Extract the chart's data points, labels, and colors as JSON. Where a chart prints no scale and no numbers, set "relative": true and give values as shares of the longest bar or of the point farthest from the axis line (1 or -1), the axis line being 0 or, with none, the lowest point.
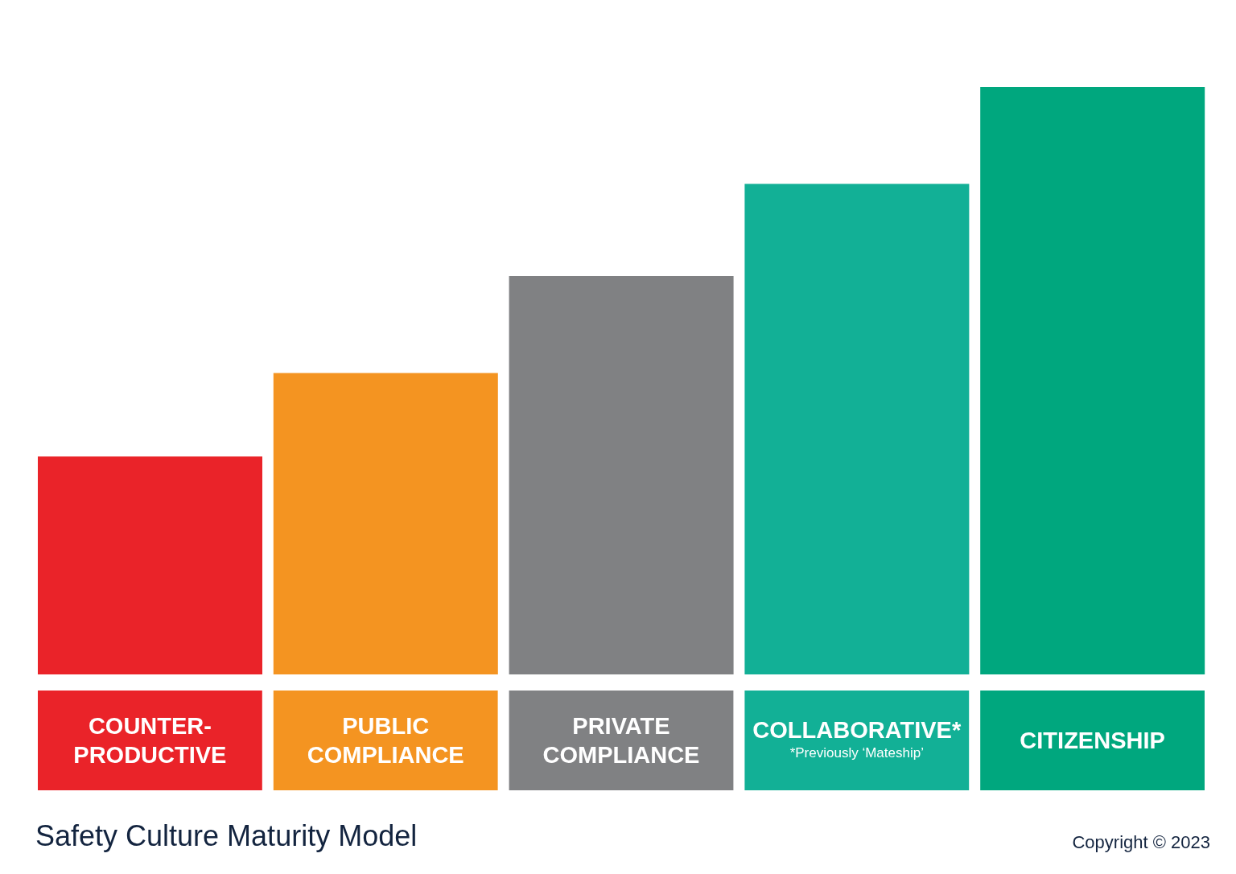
{
  "chart_data": {
    "type": "bar",
    "title": "Safety Culture Maturity Model",
    "relative": true,
    "categories": [
      "COUNTER-PRODUCTIVE",
      "PUBLIC COMPLIANCE",
      "PRIVATE COMPLIANCE",
      "COLLABORATIVE*",
      "CITIZENSHIP"
    ],
    "values": [
      0.371,
      0.513,
      0.678,
      0.835,
      1
    ],
    "colors": [
      "#ea2329",
      "#f49421",
      "#808183",
      "#12b096",
      "#00a77e"
    ],
    "annotations": [
      "*Previously ‘Mateship’",
      "Copyright © 2023"
    ]
  }
}
